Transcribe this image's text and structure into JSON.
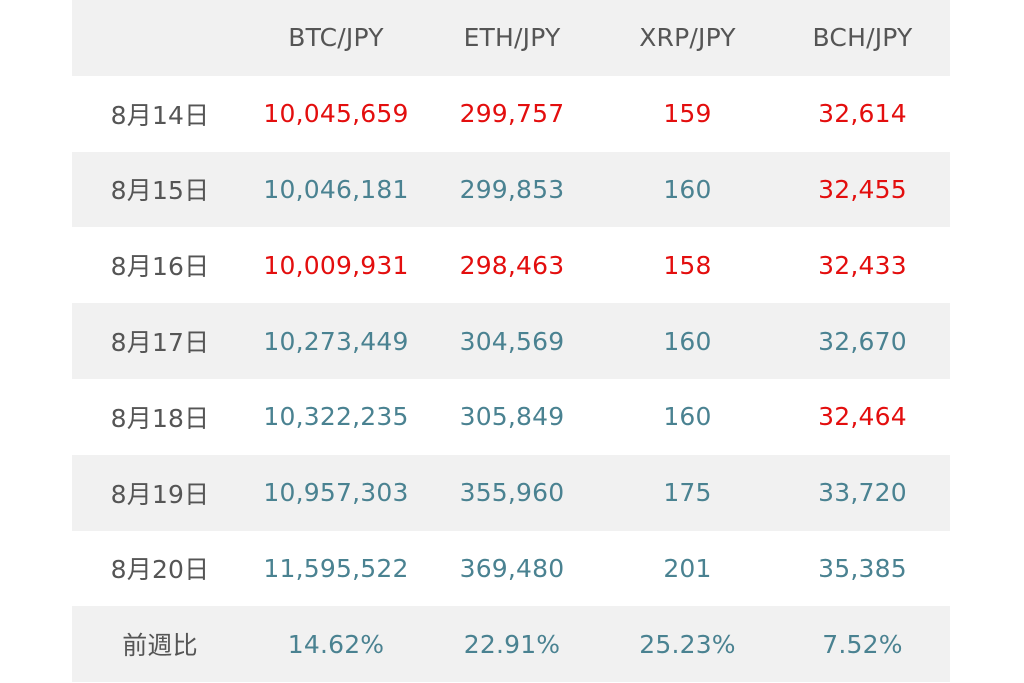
{
  "table": {
    "headers": [
      "",
      "BTC/JPY",
      "ETH/JPY",
      "XRP/JPY",
      "BCH/JPY"
    ],
    "rows": [
      {
        "date": "8月14日",
        "values": [
          "10,045,659",
          "299,757",
          "159",
          "32,614"
        ],
        "colors": [
          "red",
          "red",
          "red",
          "red"
        ]
      },
      {
        "date": "8月15日",
        "values": [
          "10,046,181",
          "299,853",
          "160",
          "32,455"
        ],
        "colors": [
          "teal",
          "teal",
          "teal",
          "red"
        ]
      },
      {
        "date": "8月16日",
        "values": [
          "10,009,931",
          "298,463",
          "158",
          "32,433"
        ],
        "colors": [
          "red",
          "red",
          "red",
          "red"
        ]
      },
      {
        "date": "8月17日",
        "values": [
          "10,273,449",
          "304,569",
          "160",
          "32,670"
        ],
        "colors": [
          "teal",
          "teal",
          "teal",
          "teal"
        ]
      },
      {
        "date": "8月18日",
        "values": [
          "10,322,235",
          "305,849",
          "160",
          "32,464"
        ],
        "colors": [
          "teal",
          "teal",
          "teal",
          "red"
        ]
      },
      {
        "date": "8月19日",
        "values": [
          "10,957,303",
          "355,960",
          "175",
          "33,720"
        ],
        "colors": [
          "teal",
          "teal",
          "teal",
          "teal"
        ]
      },
      {
        "date": "8月20日",
        "values": [
          "11,595,522",
          "369,480",
          "201",
          "35,385"
        ],
        "colors": [
          "teal",
          "teal",
          "teal",
          "teal"
        ]
      }
    ],
    "footer": {
      "label": "前週比",
      "values": [
        "14.62%",
        "22.91%",
        "25.23%",
        "7.52%"
      ]
    }
  },
  "colors": {
    "red": "#e30e0e",
    "teal": "#4a8291",
    "header_bg": "#f1f1f1",
    "text_gray": "#555555"
  }
}
